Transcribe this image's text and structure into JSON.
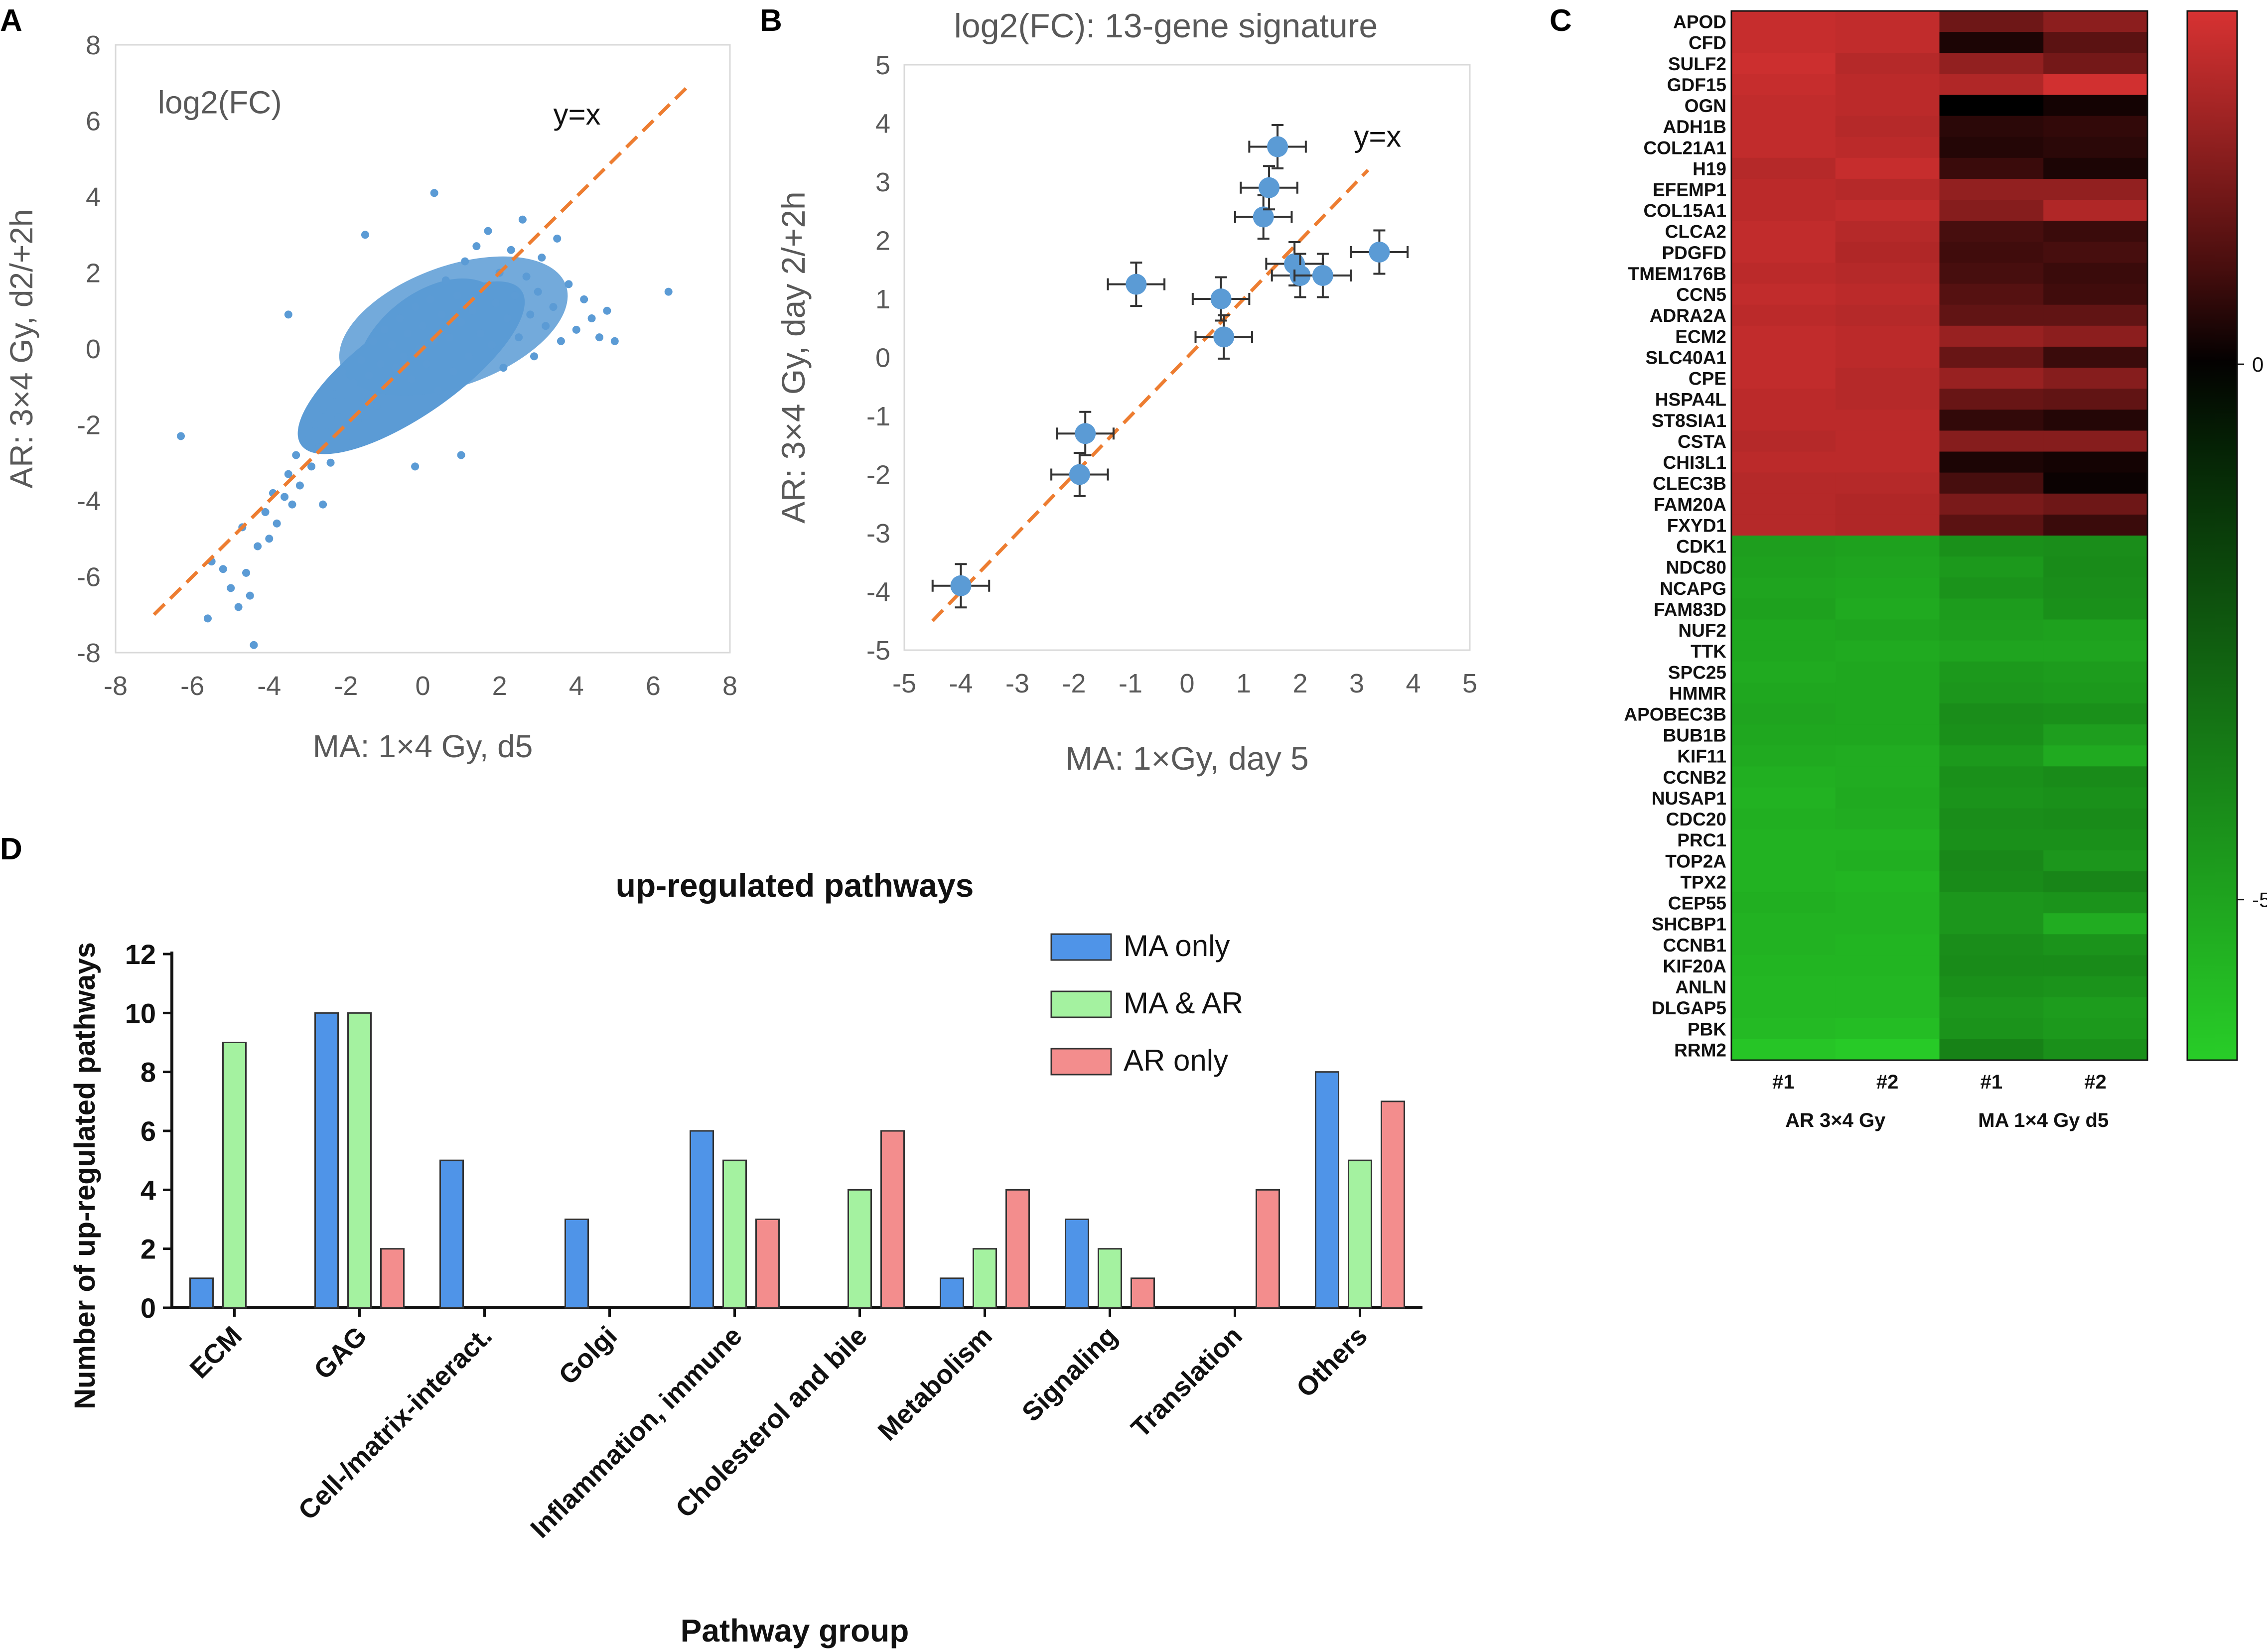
{
  "panel_labels": [
    "A",
    "B",
    "C",
    "D"
  ],
  "chart_data": [
    {
      "id": "A",
      "type": "scatter",
      "title": "log2(FC)",
      "xlabel": "MA: 1×4 Gy, d5",
      "ylabel": "AR: 3×4 Gy, d2/+2h",
      "xlim": [
        -8,
        8
      ],
      "ylim": [
        -8,
        8
      ],
      "xticks": [
        "-8",
        "-6",
        "-4",
        "-2",
        "0",
        "2",
        "4",
        "6",
        "8"
      ],
      "yticks": [
        "-8",
        "-6",
        "-4",
        "-2",
        "0",
        "2",
        "4",
        "6",
        "8"
      ],
      "reference_line": {
        "label": "y=x",
        "from": [
          -7,
          -7
        ],
        "to": [
          7,
          7
        ]
      },
      "point_color": "#5B9BD5",
      "line_color": "#ED7D31",
      "note": "dense cloud of ~several thousand genes concentrated around origin",
      "points": [
        [
          -6.3,
          -2.3
        ],
        [
          -5.6,
          -7.1
        ],
        [
          -5.5,
          -5.6
        ],
        [
          -5.2,
          -5.8
        ],
        [
          -5.0,
          -6.3
        ],
        [
          -4.8,
          -6.8
        ],
        [
          -4.6,
          -5.9
        ],
        [
          -4.5,
          -6.5
        ],
        [
          -4.4,
          -7.8
        ],
        [
          -4.3,
          -5.2
        ],
        [
          -4.7,
          -4.7
        ],
        [
          -4.1,
          -4.3
        ],
        [
          -4.0,
          -5.0
        ],
        [
          -3.9,
          -3.8
        ],
        [
          -3.8,
          -4.6
        ],
        [
          -3.6,
          -3.9
        ],
        [
          -3.5,
          -3.3
        ],
        [
          -3.4,
          -4.1
        ],
        [
          -3.3,
          -2.8
        ],
        [
          -3.2,
          -3.6
        ],
        [
          -3.0,
          -2.4
        ],
        [
          -2.9,
          -3.1
        ],
        [
          -2.8,
          -2.0
        ],
        [
          -2.7,
          -2.6
        ],
        [
          -2.6,
          -1.6
        ],
        [
          -2.5,
          -2.2
        ],
        [
          -2.4,
          -3.0
        ],
        [
          -2.3,
          -1.2
        ],
        [
          -2.2,
          -1.8
        ],
        [
          -2.1,
          -0.6
        ],
        [
          -2.0,
          -1.4
        ],
        [
          -1.9,
          -2.5
        ],
        [
          -1.8,
          -0.9
        ],
        [
          -1.7,
          -1.9
        ],
        [
          -1.6,
          -0.3
        ],
        [
          -1.5,
          -1.2
        ],
        [
          -1.4,
          -0.7
        ],
        [
          -1.3,
          0.2
        ],
        [
          -1.2,
          -1.5
        ],
        [
          -1.1,
          -0.4
        ],
        [
          -1.0,
          0.5
        ],
        [
          -0.9,
          -0.9
        ],
        [
          -0.8,
          0.1
        ],
        [
          -0.7,
          -0.5
        ],
        [
          -0.6,
          0.8
        ],
        [
          -0.5,
          -0.2
        ],
        [
          -0.4,
          0.4
        ],
        [
          -0.3,
          -0.8
        ],
        [
          -0.2,
          1.1
        ],
        [
          -0.1,
          0.0
        ],
        [
          0.0,
          0.6
        ],
        [
          0.1,
          -0.4
        ],
        [
          0.2,
          1.3
        ],
        [
          0.3,
          0.2
        ],
        [
          0.4,
          -1.1
        ],
        [
          0.5,
          0.9
        ],
        [
          0.6,
          1.8
        ],
        [
          0.7,
          0.3
        ],
        [
          0.8,
          -0.6
        ],
        [
          0.9,
          1.4
        ],
        [
          1.0,
          0.7
        ],
        [
          1.1,
          2.3
        ],
        [
          1.2,
          -0.2
        ],
        [
          1.3,
          1.0
        ],
        [
          1.4,
          2.7
        ],
        [
          1.5,
          0.4
        ],
        [
          1.6,
          1.6
        ],
        [
          1.7,
          3.1
        ],
        [
          1.8,
          0.1
        ],
        [
          1.9,
          1.2
        ],
        [
          2.0,
          2.0
        ],
        [
          2.1,
          -0.5
        ],
        [
          2.2,
          0.8
        ],
        [
          2.3,
          2.6
        ],
        [
          2.4,
          1.4
        ],
        [
          2.5,
          0.3
        ],
        [
          2.6,
          3.4
        ],
        [
          2.7,
          1.9
        ],
        [
          2.8,
          0.9
        ],
        [
          2.9,
          -0.2
        ],
        [
          3.0,
          1.5
        ],
        [
          3.1,
          2.4
        ],
        [
          3.2,
          0.6
        ],
        [
          3.4,
          1.1
        ],
        [
          3.5,
          2.9
        ],
        [
          3.6,
          0.2
        ],
        [
          3.8,
          1.7
        ],
        [
          4.0,
          0.5
        ],
        [
          4.2,
          1.3
        ],
        [
          4.4,
          0.8
        ],
        [
          4.6,
          0.3
        ],
        [
          4.8,
          1.0
        ],
        [
          5.0,
          0.2
        ],
        [
          6.4,
          1.5
        ],
        [
          -1.5,
          3.0
        ],
        [
          0.3,
          4.1
        ],
        [
          -3.5,
          0.9
        ],
        [
          -0.2,
          -3.1
        ],
        [
          1.0,
          -2.8
        ],
        [
          -2.6,
          -4.1
        ]
      ]
    },
    {
      "id": "B",
      "type": "scatter",
      "title": "log2(FC): 13-gene signature",
      "xlabel": "MA: 1×Gy, day 5",
      "ylabel": "AR: 3×4 Gy, day 2/+2h",
      "xlim": [
        -5,
        5
      ],
      "ylim": [
        -5,
        5
      ],
      "xticks": [
        "-5",
        "-4",
        "-3",
        "-2",
        "-1",
        "0",
        "1",
        "2",
        "3",
        "4",
        "5"
      ],
      "yticks": [
        "-5",
        "-4",
        "-3",
        "-2",
        "-1",
        "0",
        "1",
        "2",
        "3",
        "4",
        "5"
      ],
      "reference_line": {
        "label": "y=x",
        "from": [
          -4.5,
          -4.5
        ],
        "to": [
          3.2,
          3.2
        ]
      },
      "point_color": "#5B9BD5",
      "line_color": "#ED7D31",
      "error_bar": {
        "x": 0.5,
        "y": 0.37
      },
      "points": [
        [
          -4.0,
          -3.9
        ],
        [
          -1.9,
          -2.0
        ],
        [
          -1.8,
          -1.3
        ],
        [
          -0.9,
          1.25
        ],
        [
          0.6,
          1.0
        ],
        [
          0.65,
          0.35
        ],
        [
          1.35,
          2.4
        ],
        [
          1.45,
          2.9
        ],
        [
          1.6,
          3.6
        ],
        [
          1.9,
          1.6
        ],
        [
          2.0,
          1.4
        ],
        [
          2.4,
          1.4
        ],
        [
          3.4,
          1.8
        ]
      ]
    },
    {
      "id": "C",
      "type": "heatmap",
      "columns": [
        "#1",
        "#2",
        "#1",
        "#2"
      ],
      "column_groups": [
        "AR 3×4 Gy",
        "MA 1×4 Gy d5"
      ],
      "colorbar_ticks": [
        "0",
        "-5"
      ],
      "colorbar_range": [
        -6.5,
        3.3
      ],
      "genes": [
        "APOD",
        "CFD",
        "SULF2",
        "GDF15",
        "OGN",
        "ADH1B",
        "COL21A1",
        "H19",
        "EFEMP1",
        "COL15A1",
        "CLCA2",
        "PDGFD",
        "TMEM176B",
        "CCN5",
        "ADRA2A",
        "ECM2",
        "SLC40A1",
        "CPE",
        "HSPA4L",
        "ST8SIA1",
        "CSTA",
        "CHI3L1",
        "CLEC3B",
        "FAM20A",
        "FXYD1",
        "CDK1",
        "NDC80",
        "NCAPG",
        "FAM83D",
        "NUF2",
        "TTK",
        "SPC25",
        "HMMR",
        "APOBEC3B",
        "BUB1B",
        "KIF11",
        "CCNB2",
        "NUSAP1",
        "CDC20",
        "PRC1",
        "TOP2A",
        "TPX2",
        "CEP55",
        "SHCBP1",
        "CCNB1",
        "KIF20A",
        "ANLN",
        "DLGAP5",
        "PBK",
        "RRM2"
      ],
      "values": [
        [
          3.0,
          2.9,
          1.5,
          2.0
        ],
        [
          3.0,
          2.9,
          0.3,
          1.2
        ],
        [
          3.1,
          2.7,
          2.1,
          1.6
        ],
        [
          3.0,
          2.8,
          2.6,
          3.2
        ],
        [
          2.9,
          2.8,
          0.0,
          0.2
        ],
        [
          2.9,
          2.7,
          0.5,
          0.6
        ],
        [
          2.9,
          2.8,
          0.4,
          0.5
        ],
        [
          2.7,
          3.0,
          0.7,
          0.3
        ],
        [
          2.8,
          2.7,
          2.1,
          2.1
        ],
        [
          2.8,
          2.9,
          1.9,
          2.6
        ],
        [
          2.9,
          2.7,
          0.9,
          0.7
        ],
        [
          2.9,
          2.6,
          0.8,
          0.9
        ],
        [
          2.8,
          2.7,
          0.9,
          0.7
        ],
        [
          2.9,
          2.8,
          1.1,
          0.8
        ],
        [
          2.8,
          2.7,
          1.3,
          1.3
        ],
        [
          2.9,
          2.8,
          2.2,
          2.0
        ],
        [
          2.9,
          2.8,
          1.4,
          0.7
        ],
        [
          2.9,
          2.7,
          2.2,
          1.9
        ],
        [
          2.8,
          2.7,
          1.4,
          1.3
        ],
        [
          2.8,
          2.8,
          0.6,
          0.4
        ],
        [
          2.7,
          2.8,
          1.9,
          1.9
        ],
        [
          2.8,
          2.8,
          0.3,
          0.2
        ],
        [
          2.7,
          2.7,
          0.9,
          0.1
        ],
        [
          2.7,
          2.6,
          1.7,
          1.5
        ],
        [
          2.7,
          2.6,
          1.2,
          0.7
        ],
        [
          -4.8,
          -4.9,
          -4.3,
          -4.2
        ],
        [
          -4.9,
          -5.0,
          -4.6,
          -4.1
        ],
        [
          -5.0,
          -5.1,
          -4.4,
          -4.2
        ],
        [
          -4.9,
          -5.2,
          -4.7,
          -4.3
        ],
        [
          -5.1,
          -5.0,
          -4.8,
          -4.9
        ],
        [
          -5.1,
          -5.2,
          -5.0,
          -5.0
        ],
        [
          -5.2,
          -5.1,
          -4.6,
          -4.7
        ],
        [
          -5.1,
          -5.1,
          -4.5,
          -4.6
        ],
        [
          -5.0,
          -5.1,
          -4.2,
          -4.3
        ],
        [
          -5.1,
          -5.1,
          -4.3,
          -4.8
        ],
        [
          -5.2,
          -5.3,
          -4.6,
          -5.2
        ],
        [
          -5.4,
          -5.3,
          -4.3,
          -4.1
        ],
        [
          -5.5,
          -5.2,
          -4.4,
          -4.3
        ],
        [
          -5.4,
          -5.3,
          -4.2,
          -4.1
        ],
        [
          -5.5,
          -5.5,
          -4.3,
          -4.3
        ],
        [
          -5.5,
          -5.4,
          -4.0,
          -4.5
        ],
        [
          -5.5,
          -5.6,
          -4.1,
          -3.9
        ],
        [
          -5.4,
          -5.5,
          -4.5,
          -4.4
        ],
        [
          -5.5,
          -5.5,
          -4.5,
          -5.3
        ],
        [
          -5.5,
          -5.6,
          -4.2,
          -4.4
        ],
        [
          -5.6,
          -5.6,
          -4.1,
          -4.1
        ],
        [
          -5.7,
          -5.7,
          -4.3,
          -4.4
        ],
        [
          -5.7,
          -5.7,
          -4.5,
          -4.7
        ],
        [
          -5.8,
          -5.9,
          -4.4,
          -4.6
        ],
        [
          -6.2,
          -6.4,
          -3.8,
          -4.3
        ]
      ]
    },
    {
      "id": "D",
      "type": "bar",
      "title": "up-regulated pathways",
      "xlabel": "Pathway group",
      "ylabel": "Number of up-regulated pathways",
      "ylim": [
        0,
        12
      ],
      "yticks": [
        "0",
        "2",
        "4",
        "6",
        "8",
        "10",
        "12"
      ],
      "categories": [
        "ECM",
        "GAG",
        "Cell-/matrix-interact.",
        "Golgi",
        "Inflammation, immune",
        "Cholesterol and bile",
        "Metabolism",
        "Signaling",
        "Translation",
        "Others"
      ],
      "series": [
        {
          "name": "MA only",
          "color": "#4F94E8",
          "values": [
            1,
            10,
            5,
            3,
            6,
            0,
            1,
            3,
            0,
            8
          ]
        },
        {
          "name": "MA & AR",
          "color": "#A4F2A0",
          "values": [
            9,
            10,
            0,
            0,
            5,
            4,
            2,
            2,
            0,
            5
          ]
        },
        {
          "name": "AR only",
          "color": "#F38D8D",
          "values": [
            0,
            2,
            0,
            0,
            3,
            6,
            4,
            1,
            4,
            7
          ]
        }
      ],
      "legend": "top-right"
    }
  ]
}
